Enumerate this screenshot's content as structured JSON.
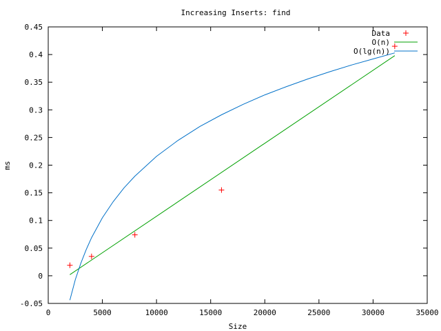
{
  "chart_data": {
    "type": "line",
    "title": "Increasing Inserts: find",
    "xlabel": "Size",
    "ylabel": "ms",
    "xlim": [
      0,
      35000
    ],
    "ylim": [
      -0.05,
      0.45
    ],
    "x_ticks": [
      0,
      5000,
      10000,
      15000,
      20000,
      25000,
      30000,
      35000
    ],
    "x_tick_labels": [
      "0",
      "5000",
      "10000",
      "15000",
      "20000",
      "25000",
      "30000",
      "35000"
    ],
    "y_ticks": [
      -0.05,
      0,
      0.05,
      0.1,
      0.15,
      0.2,
      0.25,
      0.3,
      0.35,
      0.4,
      0.45
    ],
    "y_tick_labels": [
      "-0.05",
      "0",
      "0.05",
      "0.1",
      "0.15",
      "0.2",
      "0.25",
      "0.3",
      "0.35",
      "0.4",
      "0.45"
    ],
    "grid": false,
    "legend_position": "top-right",
    "series": [
      {
        "name": "Data",
        "kind": "points",
        "marker": "plus",
        "color": "#ff0000",
        "x": [
          2000,
          4000,
          8000,
          16000,
          32000
        ],
        "y": [
          0.019,
          0.035,
          0.074,
          0.155,
          0.415
        ]
      },
      {
        "name": "O(n)",
        "kind": "line",
        "color": "#00a000",
        "x": [
          2000,
          32000
        ],
        "y": [
          0.002,
          0.398
        ]
      },
      {
        "name": "O(lg(n))",
        "kind": "curve",
        "color": "#0070c8",
        "x": [
          2000,
          2500,
          3000,
          3500,
          4000,
          5000,
          6000,
          7000,
          8000,
          10000,
          12000,
          14000,
          16000,
          18000,
          20000,
          22000,
          24000,
          26000,
          28000,
          30000,
          32000
        ],
        "y": [
          -0.044,
          -0.007,
          0.022,
          0.047,
          0.069,
          0.105,
          0.134,
          0.159,
          0.18,
          0.216,
          0.245,
          0.27,
          0.291,
          0.31,
          0.327,
          0.342,
          0.356,
          0.369,
          0.381,
          0.392,
          0.403
        ]
      }
    ]
  }
}
